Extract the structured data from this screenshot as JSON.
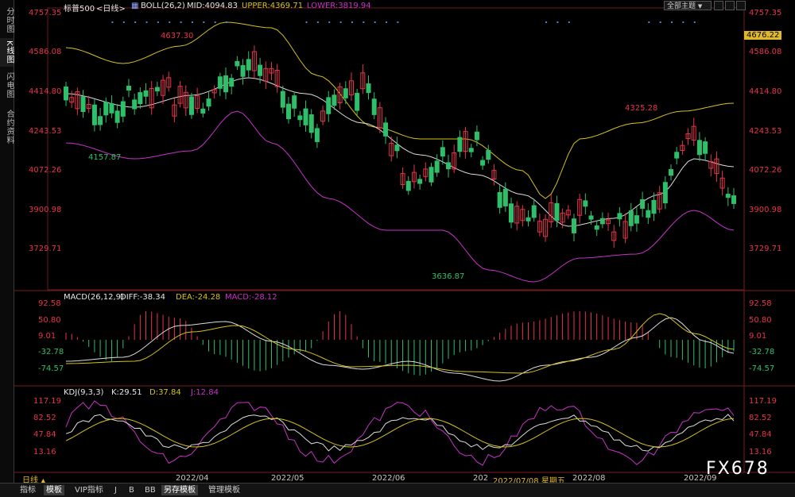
{
  "sidebar": {
    "tabs": [
      {
        "label": "分时图",
        "active": false
      },
      {
        "label": "K线图",
        "active": true
      },
      {
        "label": "闪电图",
        "active": false
      },
      {
        "label": "合约资料",
        "active": false
      }
    ]
  },
  "header": {
    "instrument": "标普500",
    "period": "<日线>",
    "boll_label": "BOLL(26,2)",
    "mid": "MID:4094.83",
    "upper": "UPPER:4369.71",
    "lower": "LOWER:3819.94",
    "theme_select": "全部主题"
  },
  "macd_header": {
    "label": "MACD(26,12,9)",
    "diff": "DIFF:-38.34",
    "dea": "DEA:-24.28",
    "macd": "MACD:-28.12"
  },
  "kdj_header": {
    "label": "KDJ(9,3,3)",
    "k": "K:29.51",
    "d": "D:37.84",
    "j": "J:12.84"
  },
  "colors": {
    "up": "#e8344a",
    "down": "#2fbf6a",
    "mid": "#dcdcdc",
    "band": "#d6c21a",
    "lower": "#c832c8",
    "axis": "#e8344a",
    "cursor_price_bg": "#e0b92a"
  },
  "main_axis": {
    "ticks": [
      "4757.35",
      "4586.08",
      "4414.80",
      "4243.53",
      "4072.26",
      "3900.98",
      "3729.71"
    ],
    "cursor_price": "4676.22"
  },
  "macd_axis": {
    "ticks": [
      "92.58",
      "50.80",
      "9.01",
      "-32.78",
      "-74.57"
    ]
  },
  "kdj_axis": {
    "ticks": [
      "117.19",
      "82.52",
      "47.84",
      "13.16"
    ]
  },
  "annotations": {
    "high1": "4637.30",
    "low1": "4157.87",
    "low2": "3636.87",
    "high2": "4325.28"
  },
  "x_axis": {
    "period_label": "日线",
    "dates": [
      "2022/04",
      "2022/05",
      "2022/06",
      "202",
      "2022/08",
      "2022/09"
    ],
    "cursor_date": "2022/07/08 星期五"
  },
  "bottom_tabs": [
    {
      "label": "指标",
      "active": false
    },
    {
      "label": "模板",
      "active": true
    },
    {
      "label": "VIP指标",
      "active": false
    },
    {
      "label": "J",
      "active": false
    },
    {
      "label": "B",
      "active": false
    },
    {
      "label": "BB",
      "active": false
    },
    {
      "label": "另存模板",
      "active": true
    },
    {
      "label": "管理模板",
      "active": false
    }
  ],
  "watermark": "FX678"
}
